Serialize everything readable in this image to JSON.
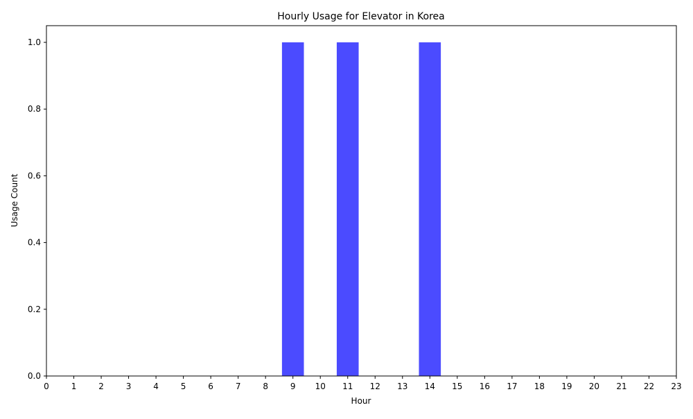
{
  "chart_data": {
    "type": "bar",
    "title": "Hourly Usage for Elevator in Korea",
    "xlabel": "Hour",
    "ylabel": "Usage Count",
    "categories": [
      "0",
      "1",
      "2",
      "3",
      "4",
      "5",
      "6",
      "7",
      "8",
      "9",
      "10",
      "11",
      "12",
      "13",
      "14",
      "15",
      "16",
      "17",
      "18",
      "19",
      "20",
      "21",
      "22",
      "23"
    ],
    "bars": [
      {
        "x": 9,
        "value": 1.0
      },
      {
        "x": 11,
        "value": 1.0
      },
      {
        "x": 14,
        "value": 1.0
      }
    ],
    "xlim": [
      0,
      23
    ],
    "ylim": [
      0,
      1.05
    ],
    "yticks": [
      "0.0",
      "0.2",
      "0.4",
      "0.6",
      "0.8",
      "1.0"
    ],
    "grid": false,
    "bar_color": "#4b4bff"
  }
}
